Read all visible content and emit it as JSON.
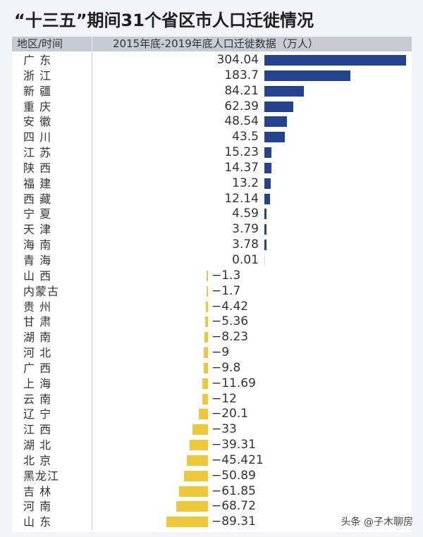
{
  "title": "“十三五”期间31个省区市人口迁徙情况",
  "header": {
    "region_col": "地区/时间",
    "data_col": "2015年底-2019年底人口迁徙数据（万人）"
  },
  "colors": {
    "positive": "#24428e",
    "negative": "#eec73a",
    "header_bg": "#c8cbd3",
    "page_bg": "#f2f3f6"
  },
  "watermark": "头条 @子木聊房",
  "rows": [
    {
      "name": "广 东",
      "value": "304.04"
    },
    {
      "name": "浙 江",
      "value": "183.7"
    },
    {
      "name": "新 疆",
      "value": "84.21"
    },
    {
      "name": "重 庆",
      "value": "62.39"
    },
    {
      "name": "安 徽",
      "value": "48.54"
    },
    {
      "name": "四 川",
      "value": "43.5"
    },
    {
      "name": "江 苏",
      "value": "15.23"
    },
    {
      "name": "陕 西",
      "value": "14.37"
    },
    {
      "name": "福 建",
      "value": "13.2"
    },
    {
      "name": "西 藏",
      "value": "12.14"
    },
    {
      "name": "宁 夏",
      "value": "4.59"
    },
    {
      "name": "天 津",
      "value": "3.79"
    },
    {
      "name": "海 南",
      "value": "3.78"
    },
    {
      "name": "青 海",
      "value": "0.01"
    },
    {
      "name": "山 西",
      "value": "−1.3"
    },
    {
      "name": "内蒙古",
      "value": "−1.7"
    },
    {
      "name": "贵 州",
      "value": "−4.42"
    },
    {
      "name": "甘 肃",
      "value": "−5.36"
    },
    {
      "name": "湖 南",
      "value": "−8.23"
    },
    {
      "name": "河 北",
      "value": "−9"
    },
    {
      "name": "广 西",
      "value": "−9.8"
    },
    {
      "name": "上 海",
      "value": "−11.69"
    },
    {
      "name": "云 南",
      "value": "−12"
    },
    {
      "name": "辽 宁",
      "value": "−20.1"
    },
    {
      "name": "江 西",
      "value": "−33"
    },
    {
      "name": "湖 北",
      "value": "−39.31"
    },
    {
      "name": "北 京",
      "value": "−45.421"
    },
    {
      "name": "黑龙江",
      "value": "−50.89"
    },
    {
      "name": "吉 林",
      "value": "−61.85"
    },
    {
      "name": "河 南",
      "value": "−68.72"
    },
    {
      "name": "山 东",
      "value": "−89.31"
    }
  ],
  "chart_data": {
    "type": "bar",
    "orientation": "horizontal",
    "title": "“十三五”期间31个省区市人口迁徙情况",
    "xlabel": "2015年底-2019年底人口迁徙数据（万人）",
    "ylabel": "地区/时间",
    "categories": [
      "广东",
      "浙江",
      "新疆",
      "重庆",
      "安徽",
      "四川",
      "江苏",
      "陕西",
      "福建",
      "西藏",
      "宁夏",
      "天津",
      "海南",
      "青海",
      "山西",
      "内蒙古",
      "贵州",
      "甘肃",
      "湖南",
      "河北",
      "广西",
      "上海",
      "云南",
      "辽宁",
      "江西",
      "湖北",
      "北京",
      "黑龙江",
      "吉林",
      "河南",
      "山东"
    ],
    "values": [
      304.04,
      183.7,
      84.21,
      62.39,
      48.54,
      43.5,
      15.23,
      14.37,
      13.2,
      12.14,
      4.59,
      3.79,
      3.78,
      0.01,
      -1.3,
      -1.7,
      -4.42,
      -5.36,
      -8.23,
      -9,
      -9.8,
      -11.69,
      -12,
      -20.1,
      -33,
      -39.31,
      -45.421,
      -50.89,
      -61.85,
      -68.72,
      -89.31
    ],
    "units": "万人",
    "series_colors": {
      "positive": "#24428e",
      "negative": "#eec73a"
    },
    "grid": false,
    "legend": "none"
  }
}
